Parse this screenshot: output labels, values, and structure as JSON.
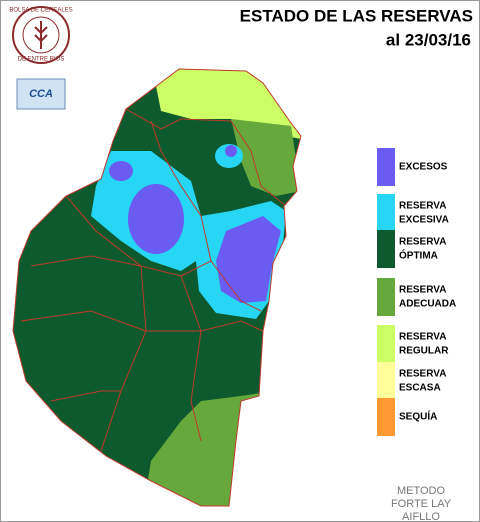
{
  "header": {
    "title": "ESTADO DE LAS RESERVAS",
    "date": "al 23/03/16"
  },
  "logo": {
    "top_text": "BOLSA DE CEREALES",
    "bottom_text": "DE ENTRE RIOS",
    "badge": "CCA"
  },
  "legend": [
    {
      "lines": [
        "EXCESOS"
      ],
      "color": "#6a5cf0"
    },
    {
      "lines": [
        "RESERVA",
        "EXCESIVA"
      ],
      "color": "#27d6f5"
    },
    {
      "lines": [
        "RESERVA",
        "ÓPTIMA"
      ],
      "color": "#0d5a2e"
    },
    {
      "lines": [
        "RESERVA",
        "ADECUADA"
      ],
      "color": "#66a83c"
    },
    {
      "lines": [
        "RESERVA",
        "REGULAR"
      ],
      "color": "#ccff66"
    },
    {
      "lines": [
        "RESERVA",
        "ESCASA"
      ],
      "color": "#ffff99"
    },
    {
      "lines": [
        "SEQUÍA"
      ],
      "color": "#ff9933"
    }
  ],
  "method": [
    "METODO",
    "FORTE LAY",
    "AIFLLO"
  ]
}
